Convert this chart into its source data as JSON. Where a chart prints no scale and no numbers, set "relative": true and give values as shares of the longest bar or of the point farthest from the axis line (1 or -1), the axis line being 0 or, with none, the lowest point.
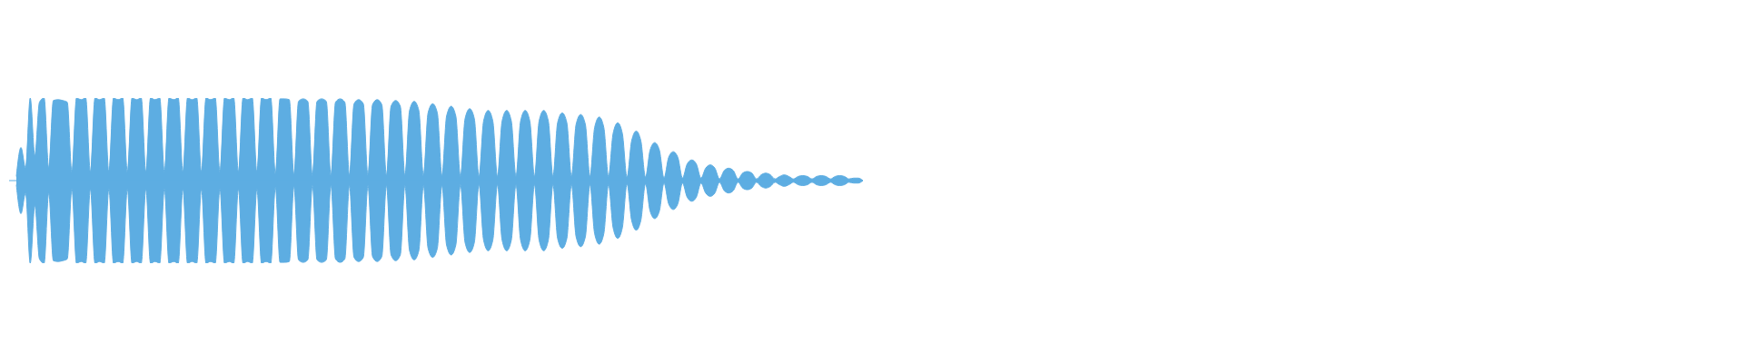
{
  "chart_data": {
    "type": "area",
    "relative": true,
    "ref_lines": [
      {
        "axis": "y",
        "value": 0,
        "color": "#5dade2"
      }
    ],
    "categories": [
      null,
      null,
      null,
      null,
      null,
      null,
      null,
      null,
      null,
      null,
      null,
      null,
      null,
      null,
      null,
      null,
      null,
      null,
      null,
      null,
      null,
      null,
      null,
      null,
      null,
      null,
      null,
      null,
      null,
      null,
      null,
      null,
      null,
      null,
      null,
      null,
      null,
      null,
      null,
      null,
      null,
      null,
      null,
      null,
      null,
      null,
      null,
      null,
      null,
      null,
      null,
      null,
      null,
      null,
      null,
      null,
      null,
      null,
      null,
      null,
      null,
      null,
      null,
      null,
      null,
      null,
      null,
      null,
      null,
      null,
      null,
      null,
      null,
      null,
      null,
      null,
      null,
      null,
      null,
      null,
      null,
      null,
      null,
      null,
      null,
      null,
      null,
      null,
      null,
      null,
      null,
      null,
      null,
      null,
      null,
      null,
      null,
      null,
      null,
      null,
      null,
      null,
      null,
      null,
      null,
      null,
      null,
      null,
      null,
      null,
      null,
      null,
      null,
      null,
      null,
      null,
      null,
      null,
      null,
      null,
      null,
      null,
      null,
      null,
      null,
      null,
      null,
      null,
      null,
      null,
      null,
      null,
      null,
      null,
      null,
      null,
      null,
      null,
      null,
      null,
      null,
      null,
      null,
      null,
      null,
      null,
      null,
      null,
      null,
      null,
      null,
      null,
      null,
      null,
      null,
      null,
      null,
      null,
      null,
      null,
      null,
      null,
      null,
      null,
      null,
      null,
      null,
      null,
      null,
      null,
      null,
      null,
      null,
      null,
      null,
      null,
      null,
      null,
      null,
      null,
      null,
      null,
      null,
      null
    ],
    "series": [
      {
        "color": "#5dade2",
        "values": [
          0.05,
          0.4,
          0.15,
          1,
          0.3,
          0.95,
          1,
          0.15,
          0.97,
          0.98,
          0.97,
          0.95,
          0.1,
          1,
          0.98,
          1,
          0.1,
          1,
          0.98,
          1,
          0.1,
          1,
          0.98,
          1,
          0.1,
          1,
          0.98,
          1,
          0.1,
          1,
          0.98,
          1,
          0.1,
          1,
          0.98,
          1,
          0.1,
          1,
          0.98,
          1,
          0.1,
          1,
          0.98,
          1,
          0.1,
          1,
          0.98,
          1,
          0.1,
          1,
          0.98,
          1,
          0.1,
          1,
          0.98,
          1,
          0.08,
          0.99,
          0.99,
          0.98,
          0.07,
          0.96,
          0.99,
          0.96,
          0.06,
          0.96,
          0.99,
          0.96,
          0.06,
          0.95,
          0.99,
          0.95,
          0.06,
          0.93,
          0.98,
          0.93,
          0.06,
          0.92,
          0.98,
          0.92,
          0.06,
          0.9,
          0.97,
          0.9,
          0.06,
          0.85,
          0.96,
          0.85,
          0.06,
          0.82,
          0.93,
          0.82,
          0.06,
          0.78,
          0.9,
          0.78,
          0.05,
          0.75,
          0.87,
          0.75,
          0.05,
          0.72,
          0.85,
          0.72,
          0.05,
          0.72,
          0.85,
          0.72,
          0.05,
          0.72,
          0.85,
          0.72,
          0.05,
          0.72,
          0.85,
          0.72,
          0.05,
          0.7,
          0.82,
          0.7,
          0.05,
          0.68,
          0.8,
          0.68,
          0.05,
          0.64,
          0.77,
          0.64,
          0.05,
          0.57,
          0.7,
          0.57,
          0.04,
          0.48,
          0.6,
          0.48,
          0.04,
          0.37,
          0.46,
          0.37,
          0.03,
          0.28,
          0.35,
          0.28,
          0.03,
          0.2,
          0.25,
          0.2,
          0.03,
          0.15,
          0.19,
          0.15,
          0.02,
          0.12,
          0.15,
          0.12,
          0.02,
          0.09,
          0.11,
          0.09,
          0.02,
          0.07,
          0.09,
          0.07,
          0.02,
          0.05,
          0.07,
          0.05,
          0.02,
          0.05,
          0.06,
          0.05,
          0.02,
          0.05,
          0.06,
          0.05,
          0.02,
          0.05,
          0.06,
          0.05,
          0.02,
          0.03,
          0.03,
          0
        ]
      },
      {
        "color": "#5dade2",
        "values": [
          -0.05,
          -0.4,
          -0.15,
          -1,
          -0.3,
          -0.95,
          -1,
          -0.15,
          -0.97,
          -0.98,
          -0.97,
          -0.95,
          -0.1,
          -1,
          -0.98,
          -1,
          -0.1,
          -1,
          -0.98,
          -1,
          -0.1,
          -1,
          -0.98,
          -1,
          -0.1,
          -1,
          -0.98,
          -1,
          -0.1,
          -1,
          -0.98,
          -1,
          -0.1,
          -1,
          -0.98,
          -1,
          -0.1,
          -1,
          -0.98,
          -1,
          -0.1,
          -1,
          -0.98,
          -1,
          -0.1,
          -1,
          -0.98,
          -1,
          -0.1,
          -1,
          -0.98,
          -1,
          -0.1,
          -1,
          -0.98,
          -1,
          -0.08,
          -0.99,
          -0.99,
          -0.98,
          -0.07,
          -0.96,
          -0.99,
          -0.96,
          -0.06,
          -0.96,
          -0.99,
          -0.96,
          -0.06,
          -0.95,
          -0.99,
          -0.95,
          -0.06,
          -0.93,
          -0.98,
          -0.93,
          -0.06,
          -0.92,
          -0.98,
          -0.92,
          -0.06,
          -0.9,
          -0.97,
          -0.9,
          -0.06,
          -0.85,
          -0.96,
          -0.85,
          -0.06,
          -0.82,
          -0.93,
          -0.82,
          -0.06,
          -0.78,
          -0.9,
          -0.78,
          -0.05,
          -0.75,
          -0.87,
          -0.75,
          -0.05,
          -0.72,
          -0.85,
          -0.72,
          -0.05,
          -0.72,
          -0.85,
          -0.72,
          -0.05,
          -0.72,
          -0.85,
          -0.72,
          -0.05,
          -0.72,
          -0.85,
          -0.72,
          -0.05,
          -0.7,
          -0.82,
          -0.7,
          -0.05,
          -0.68,
          -0.8,
          -0.68,
          -0.05,
          -0.64,
          -0.77,
          -0.64,
          -0.05,
          -0.57,
          -0.7,
          -0.57,
          -0.04,
          -0.48,
          -0.6,
          -0.48,
          -0.04,
          -0.37,
          -0.46,
          -0.37,
          -0.03,
          -0.28,
          -0.35,
          -0.28,
          -0.03,
          -0.2,
          -0.25,
          -0.2,
          -0.03,
          -0.15,
          -0.19,
          -0.15,
          -0.02,
          -0.12,
          -0.15,
          -0.12,
          -0.02,
          -0.09,
          -0.11,
          -0.09,
          -0.02,
          -0.07,
          -0.09,
          -0.07,
          -0.02,
          -0.05,
          -0.07,
          -0.05,
          -0.02,
          -0.05,
          -0.06,
          -0.05,
          -0.02,
          -0.05,
          -0.06,
          -0.05,
          -0.02,
          -0.05,
          -0.06,
          -0.05,
          -0.02,
          -0.03,
          -0.03,
          0
        ]
      }
    ]
  }
}
